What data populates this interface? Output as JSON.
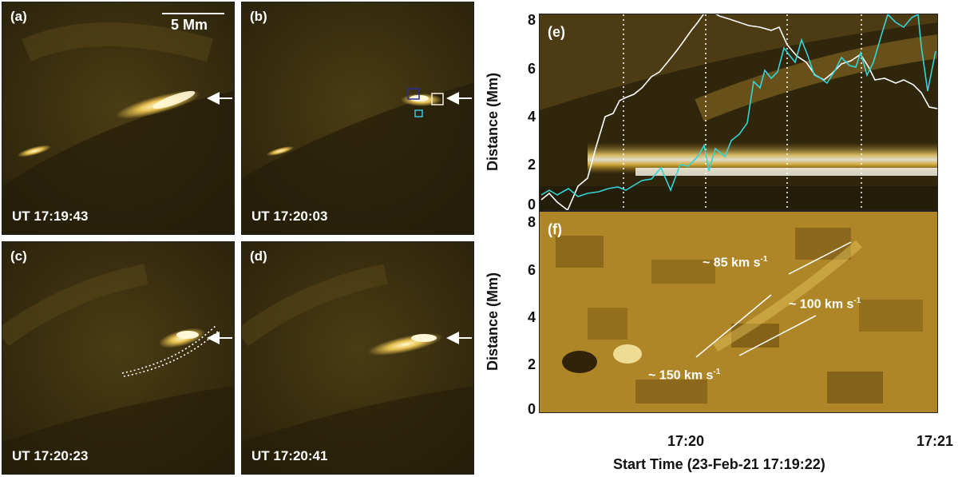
{
  "panels": {
    "a": {
      "label": "(a)",
      "time": "UT 17:19:43",
      "scale": "5 Mm"
    },
    "b": {
      "label": "(b)",
      "time": "UT 17:20:03"
    },
    "c": {
      "label": "(c)",
      "time": "UT 17:20:23"
    },
    "d": {
      "label": "(d)",
      "time": "UT 17:20:41"
    }
  },
  "e": {
    "label": "(e)",
    "ylabel": "Distance (Mm)",
    "yticks": [
      "8",
      "6",
      "4",
      "2",
      "0"
    ]
  },
  "f": {
    "label": "(f)",
    "ylabel": "Distance (Mm)",
    "yticks": [
      "8",
      "6",
      "4",
      "2",
      "0"
    ],
    "xticks": [
      "17:20",
      "17:21"
    ],
    "xlabel": "Start Time (23-Feb-21 17:19:22)",
    "speeds": [
      "~ 85 km s",
      "~ 100 km s",
      "~ 150 km s"
    ],
    "speed_unit_exp": "-1"
  },
  "colors": {
    "background": "#3a2f10",
    "bright": "#fff4c0",
    "white_curve": "#ffffff",
    "cyan_curve": "#33d6d6",
    "blue_box": "#2a2aa0",
    "cyan_box": "#3cc8d8"
  }
}
